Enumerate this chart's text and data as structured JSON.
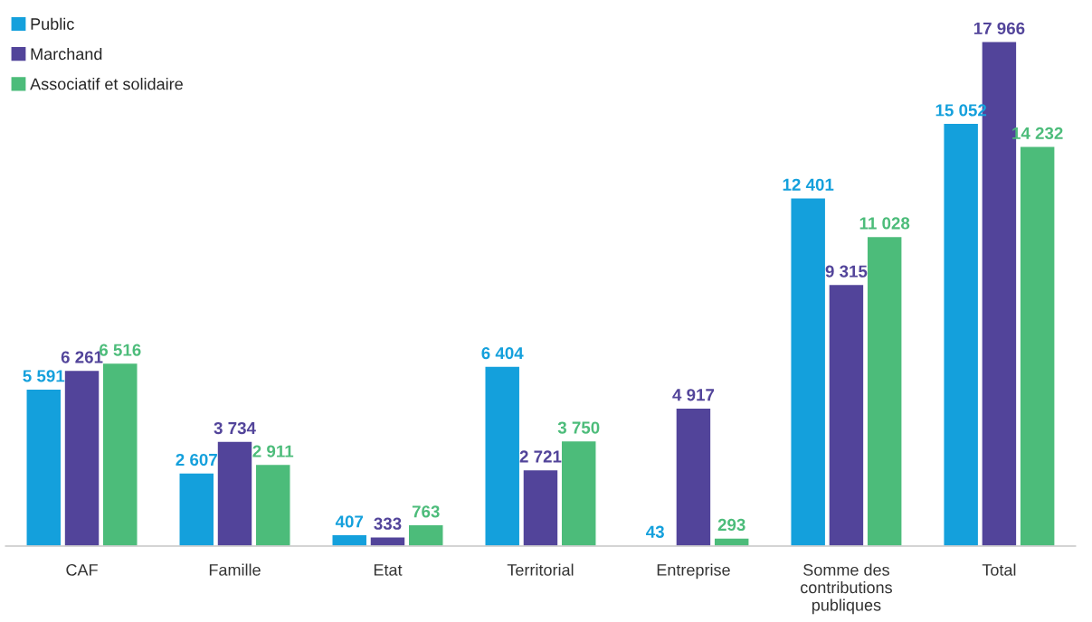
{
  "chart_data": {
    "type": "bar",
    "categories": [
      "CAF",
      "Famille",
      "Etat",
      "Territorial",
      "Entreprise",
      "Somme des\ncontributions\npubliques",
      "Total"
    ],
    "series": [
      {
        "name": "Public",
        "color": "#14a0dc",
        "values": [
          5591,
          2607,
          407,
          6404,
          43,
          12401,
          15052
        ],
        "value_labels": [
          "5 591",
          "2 607",
          "407",
          "6 404",
          "43",
          "12 401",
          "15 052"
        ]
      },
      {
        "name": "Marchand",
        "color": "#52449a",
        "values": [
          6261,
          3734,
          333,
          2721,
          4917,
          9315,
          17966
        ],
        "value_labels": [
          "6 261",
          "3 734",
          "333",
          "2 721",
          "4 917",
          "9 315",
          "17 966"
        ]
      },
      {
        "name": "Associatif et solidaire",
        "color": "#4cbc7a",
        "values": [
          6516,
          2911,
          763,
          3750,
          293,
          11028,
          14232
        ],
        "value_labels": [
          "6 516",
          "2 911",
          "763",
          "3 750",
          "293",
          "11 028",
          "14 232"
        ]
      }
    ],
    "legend": "top left",
    "grid": false
  }
}
